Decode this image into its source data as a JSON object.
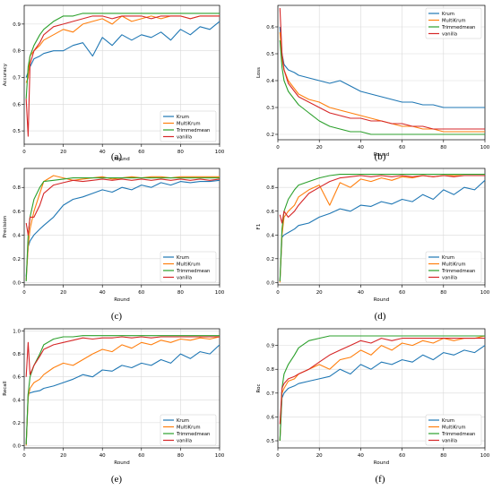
{
  "colors": {
    "Krum": "#1f77b4",
    "MultiKrum": "#ff7f0e",
    "Trimmedmean": "#2ca02c",
    "vanilla": "#d62728"
  },
  "chart_data": [
    {
      "type": "line",
      "caption": "(a)",
      "xlabel": "Round",
      "ylabel": "Accuracy",
      "xlim": [
        0,
        100
      ],
      "ylim": [
        0.45,
        0.97
      ],
      "xticks": [
        0,
        20,
        40,
        60,
        80,
        100
      ],
      "xtick_labels": [
        "0",
        "20",
        "40",
        "60",
        "80",
        "100"
      ],
      "yticks": [
        0.5,
        0.6,
        0.7,
        0.8,
        0.9
      ],
      "ytick_labels": [
        "0.5",
        "0.6",
        "0.7",
        "0.8",
        "0.9"
      ],
      "grid": true,
      "legend_position": "lower-right",
      "x": [
        1,
        2,
        3,
        5,
        8,
        10,
        15,
        20,
        25,
        30,
        35,
        40,
        45,
        50,
        55,
        60,
        65,
        70,
        75,
        80,
        85,
        90,
        95,
        100
      ],
      "series": [
        {
          "name": "Krum",
          "values": [
            0.7,
            0.72,
            0.74,
            0.77,
            0.78,
            0.79,
            0.8,
            0.8,
            0.82,
            0.83,
            0.78,
            0.85,
            0.82,
            0.86,
            0.84,
            0.86,
            0.85,
            0.87,
            0.84,
            0.88,
            0.86,
            0.89,
            0.88,
            0.91
          ]
        },
        {
          "name": "MultiKrum",
          "values": [
            0.68,
            0.7,
            0.78,
            0.8,
            0.82,
            0.84,
            0.86,
            0.88,
            0.87,
            0.9,
            0.91,
            0.92,
            0.9,
            0.93,
            0.91,
            0.92,
            0.93,
            0.92,
            0.93,
            0.93,
            0.92,
            0.93,
            0.93,
            0.93
          ]
        },
        {
          "name": "Trimmedmean",
          "values": [
            0.62,
            0.74,
            0.78,
            0.82,
            0.86,
            0.88,
            0.91,
            0.93,
            0.93,
            0.94,
            0.94,
            0.94,
            0.94,
            0.94,
            0.94,
            0.94,
            0.94,
            0.94,
            0.94,
            0.94,
            0.94,
            0.94,
            0.94,
            0.94
          ]
        },
        {
          "name": "vanilla",
          "values": [
            0.62,
            0.48,
            0.75,
            0.8,
            0.83,
            0.86,
            0.89,
            0.9,
            0.91,
            0.92,
            0.93,
            0.93,
            0.92,
            0.93,
            0.93,
            0.93,
            0.92,
            0.93,
            0.93,
            0.93,
            0.92,
            0.93,
            0.93,
            0.93
          ]
        }
      ]
    },
    {
      "type": "line",
      "caption": "(b)",
      "xlabel": "Round",
      "ylabel": "Loss",
      "xlim": [
        0,
        100
      ],
      "ylim": [
        0.18,
        0.68
      ],
      "xticks": [
        0,
        20,
        40,
        60,
        80,
        100
      ],
      "xtick_labels": [
        "0",
        "20",
        "40",
        "60",
        "80",
        "100"
      ],
      "yticks": [
        0.2,
        0.3,
        0.4,
        0.5,
        0.6
      ],
      "ytick_labels": [
        "0.2",
        "0.3",
        "0.4",
        "0.5",
        "0.6"
      ],
      "grid": true,
      "legend_position": "top-right",
      "x": [
        1,
        2,
        3,
        5,
        8,
        10,
        15,
        20,
        25,
        30,
        35,
        40,
        45,
        50,
        55,
        60,
        65,
        70,
        75,
        80,
        85,
        90,
        95,
        100
      ],
      "series": [
        {
          "name": "Krum",
          "values": [
            0.6,
            0.5,
            0.46,
            0.44,
            0.43,
            0.42,
            0.41,
            0.4,
            0.39,
            0.4,
            0.38,
            0.36,
            0.35,
            0.34,
            0.33,
            0.32,
            0.32,
            0.31,
            0.31,
            0.3,
            0.3,
            0.3,
            0.3,
            0.3
          ]
        },
        {
          "name": "MultiKrum",
          "values": [
            0.58,
            0.48,
            0.44,
            0.4,
            0.37,
            0.35,
            0.33,
            0.32,
            0.3,
            0.29,
            0.28,
            0.27,
            0.26,
            0.25,
            0.24,
            0.23,
            0.23,
            0.22,
            0.22,
            0.21,
            0.21,
            0.21,
            0.21,
            0.21
          ]
        },
        {
          "name": "Trimmedmean",
          "values": [
            0.55,
            0.45,
            0.4,
            0.36,
            0.33,
            0.31,
            0.28,
            0.25,
            0.23,
            0.22,
            0.21,
            0.21,
            0.2,
            0.2,
            0.2,
            0.2,
            0.2,
            0.2,
            0.2,
            0.2,
            0.2,
            0.2,
            0.2,
            0.2
          ]
        },
        {
          "name": "vanilla",
          "values": [
            0.67,
            0.5,
            0.44,
            0.39,
            0.36,
            0.34,
            0.32,
            0.3,
            0.28,
            0.27,
            0.26,
            0.26,
            0.25,
            0.25,
            0.24,
            0.24,
            0.23,
            0.23,
            0.22,
            0.22,
            0.22,
            0.22,
            0.22,
            0.22
          ]
        }
      ]
    },
    {
      "type": "line",
      "caption": "(c)",
      "xlabel": "Round",
      "ylabel": "Precision",
      "xlim": [
        0,
        100
      ],
      "ylim": [
        -0.02,
        0.96
      ],
      "xticks": [
        0,
        20,
        40,
        60,
        80,
        100
      ],
      "xtick_labels": [
        "0",
        "20",
        "40",
        "60",
        "80",
        "100"
      ],
      "yticks": [
        0.0,
        0.2,
        0.4,
        0.6,
        0.8
      ],
      "ytick_labels": [
        "0.0",
        "0.2",
        "0.4",
        "0.6",
        "0.8"
      ],
      "grid": true,
      "legend_position": "lower-right",
      "x": [
        1,
        2,
        3,
        5,
        8,
        10,
        15,
        20,
        25,
        30,
        35,
        40,
        45,
        50,
        55,
        60,
        65,
        70,
        75,
        80,
        85,
        90,
        95,
        100
      ],
      "series": [
        {
          "name": "Krum",
          "values": [
            0.05,
            0.3,
            0.35,
            0.4,
            0.45,
            0.48,
            0.55,
            0.65,
            0.7,
            0.72,
            0.75,
            0.78,
            0.76,
            0.8,
            0.78,
            0.82,
            0.8,
            0.84,
            0.82,
            0.85,
            0.84,
            0.85,
            0.85,
            0.86
          ]
        },
        {
          "name": "MultiKrum",
          "values": [
            0.02,
            0.3,
            0.45,
            0.6,
            0.75,
            0.85,
            0.9,
            0.88,
            0.86,
            0.87,
            0.88,
            0.89,
            0.87,
            0.88,
            0.89,
            0.88,
            0.89,
            0.89,
            0.88,
            0.89,
            0.89,
            0.89,
            0.89,
            0.89
          ]
        },
        {
          "name": "Trimmedmean",
          "values": [
            0.01,
            0.4,
            0.55,
            0.7,
            0.8,
            0.85,
            0.86,
            0.87,
            0.88,
            0.88,
            0.88,
            0.88,
            0.88,
            0.88,
            0.88,
            0.88,
            0.88,
            0.88,
            0.88,
            0.88,
            0.88,
            0.88,
            0.88,
            0.88
          ]
        },
        {
          "name": "vanilla",
          "values": [
            0.5,
            0.4,
            0.55,
            0.55,
            0.65,
            0.75,
            0.82,
            0.84,
            0.86,
            0.85,
            0.86,
            0.87,
            0.86,
            0.87,
            0.86,
            0.87,
            0.86,
            0.87,
            0.86,
            0.87,
            0.86,
            0.87,
            0.86,
            0.87
          ]
        }
      ]
    },
    {
      "type": "line",
      "caption": "(d)",
      "xlabel": "Round",
      "ylabel": "F1",
      "xlim": [
        0,
        100
      ],
      "ylim": [
        -0.02,
        0.96
      ],
      "xticks": [
        0,
        20,
        40,
        60,
        80,
        100
      ],
      "xtick_labels": [
        "0",
        "20",
        "40",
        "60",
        "80",
        "100"
      ],
      "yticks": [
        0.0,
        0.2,
        0.4,
        0.6,
        0.8
      ],
      "ytick_labels": [
        "0.0",
        "0.2",
        "0.4",
        "0.6",
        "0.8"
      ],
      "grid": true,
      "legend_position": "lower-right",
      "x": [
        1,
        2,
        3,
        5,
        8,
        10,
        15,
        20,
        25,
        30,
        35,
        40,
        45,
        50,
        55,
        60,
        65,
        70,
        75,
        80,
        85,
        90,
        95,
        100
      ],
      "series": [
        {
          "name": "Krum",
          "values": [
            0.01,
            0.38,
            0.4,
            0.42,
            0.45,
            0.48,
            0.5,
            0.55,
            0.58,
            0.62,
            0.6,
            0.65,
            0.64,
            0.68,
            0.66,
            0.7,
            0.68,
            0.74,
            0.7,
            0.78,
            0.74,
            0.8,
            0.78,
            0.86
          ]
        },
        {
          "name": "MultiKrum",
          "values": [
            0.0,
            0.4,
            0.55,
            0.6,
            0.65,
            0.72,
            0.78,
            0.82,
            0.65,
            0.84,
            0.8,
            0.87,
            0.85,
            0.88,
            0.86,
            0.89,
            0.88,
            0.9,
            0.89,
            0.9,
            0.9,
            0.9,
            0.9,
            0.9
          ]
        },
        {
          "name": "Trimmedmean",
          "values": [
            0.01,
            0.45,
            0.6,
            0.7,
            0.78,
            0.82,
            0.85,
            0.88,
            0.9,
            0.91,
            0.91,
            0.91,
            0.91,
            0.91,
            0.91,
            0.91,
            0.91,
            0.91,
            0.91,
            0.91,
            0.91,
            0.91,
            0.91,
            0.91
          ]
        },
        {
          "name": "vanilla",
          "values": [
            0.57,
            0.5,
            0.6,
            0.55,
            0.6,
            0.65,
            0.75,
            0.8,
            0.85,
            0.88,
            0.89,
            0.9,
            0.89,
            0.9,
            0.89,
            0.9,
            0.89,
            0.9,
            0.89,
            0.9,
            0.89,
            0.9,
            0.9,
            0.9
          ]
        }
      ]
    },
    {
      "type": "line",
      "caption": "(e)",
      "xlabel": "Round",
      "ylabel": "Recall",
      "xlim": [
        0,
        100
      ],
      "ylim": [
        -0.02,
        1.02
      ],
      "xticks": [
        0,
        20,
        40,
        60,
        80,
        100
      ],
      "xtick_labels": [
        "0",
        "20",
        "40",
        "60",
        "80",
        "100"
      ],
      "yticks": [
        0.0,
        0.2,
        0.4,
        0.6,
        0.8,
        1.0
      ],
      "ytick_labels": [
        "0.0",
        "0.2",
        "0.4",
        "0.6",
        "0.8",
        "1.0"
      ],
      "grid": true,
      "legend_position": "lower-right",
      "x": [
        1,
        2,
        3,
        5,
        8,
        10,
        15,
        20,
        25,
        30,
        35,
        40,
        45,
        50,
        55,
        60,
        65,
        70,
        75,
        80,
        85,
        90,
        95,
        100
      ],
      "series": [
        {
          "name": "Krum",
          "values": [
            0.01,
            0.45,
            0.46,
            0.47,
            0.48,
            0.5,
            0.52,
            0.55,
            0.58,
            0.62,
            0.6,
            0.66,
            0.65,
            0.7,
            0.68,
            0.72,
            0.7,
            0.75,
            0.72,
            0.8,
            0.76,
            0.82,
            0.8,
            0.88
          ]
        },
        {
          "name": "MultiKrum",
          "values": [
            0.0,
            0.42,
            0.5,
            0.55,
            0.58,
            0.62,
            0.68,
            0.72,
            0.7,
            0.75,
            0.8,
            0.84,
            0.82,
            0.88,
            0.85,
            0.9,
            0.88,
            0.92,
            0.9,
            0.93,
            0.92,
            0.94,
            0.93,
            0.95
          ]
        },
        {
          "name": "Trimmedmean",
          "values": [
            0.01,
            0.45,
            0.6,
            0.7,
            0.8,
            0.88,
            0.93,
            0.95,
            0.95,
            0.96,
            0.96,
            0.96,
            0.96,
            0.96,
            0.96,
            0.96,
            0.96,
            0.96,
            0.96,
            0.96,
            0.96,
            0.96,
            0.96,
            0.96
          ]
        },
        {
          "name": "vanilla",
          "values": [
            0.6,
            0.9,
            0.62,
            0.7,
            0.78,
            0.84,
            0.88,
            0.9,
            0.92,
            0.94,
            0.93,
            0.94,
            0.94,
            0.95,
            0.94,
            0.95,
            0.94,
            0.95,
            0.95,
            0.95,
            0.95,
            0.95,
            0.95,
            0.95
          ]
        }
      ]
    },
    {
      "type": "line",
      "caption": "(f)",
      "xlabel": "Round",
      "ylabel": "Roc",
      "xlim": [
        0,
        100
      ],
      "ylim": [
        0.47,
        0.97
      ],
      "xticks": [
        0,
        20,
        40,
        60,
        80,
        100
      ],
      "xtick_labels": [
        "0",
        "20",
        "40",
        "60",
        "80",
        "100"
      ],
      "yticks": [
        0.5,
        0.6,
        0.7,
        0.8,
        0.9
      ],
      "ytick_labels": [
        "0.5",
        "0.6",
        "0.7",
        "0.8",
        "0.9"
      ],
      "grid": true,
      "legend_position": "lower-right",
      "x": [
        1,
        2,
        3,
        5,
        8,
        10,
        15,
        20,
        25,
        30,
        35,
        40,
        45,
        50,
        55,
        60,
        65,
        70,
        75,
        80,
        85,
        90,
        95,
        100
      ],
      "series": [
        {
          "name": "Krum",
          "values": [
            0.5,
            0.68,
            0.7,
            0.72,
            0.73,
            0.74,
            0.75,
            0.76,
            0.77,
            0.8,
            0.78,
            0.82,
            0.8,
            0.83,
            0.82,
            0.84,
            0.83,
            0.86,
            0.84,
            0.87,
            0.86,
            0.88,
            0.87,
            0.9
          ]
        },
        {
          "name": "MultiKrum",
          "values": [
            0.5,
            0.7,
            0.72,
            0.75,
            0.76,
            0.78,
            0.8,
            0.82,
            0.8,
            0.84,
            0.85,
            0.88,
            0.86,
            0.9,
            0.88,
            0.91,
            0.9,
            0.92,
            0.91,
            0.93,
            0.92,
            0.93,
            0.93,
            0.94
          ]
        },
        {
          "name": "Trimmedmean",
          "values": [
            0.5,
            0.72,
            0.78,
            0.82,
            0.86,
            0.89,
            0.92,
            0.93,
            0.94,
            0.94,
            0.94,
            0.94,
            0.94,
            0.94,
            0.94,
            0.94,
            0.94,
            0.94,
            0.94,
            0.94,
            0.94,
            0.94,
            0.94,
            0.94
          ]
        },
        {
          "name": "vanilla",
          "values": [
            0.57,
            0.72,
            0.74,
            0.76,
            0.77,
            0.78,
            0.8,
            0.83,
            0.86,
            0.88,
            0.9,
            0.92,
            0.91,
            0.93,
            0.92,
            0.93,
            0.93,
            0.93,
            0.93,
            0.93,
            0.93,
            0.93,
            0.93,
            0.93
          ]
        }
      ]
    }
  ]
}
